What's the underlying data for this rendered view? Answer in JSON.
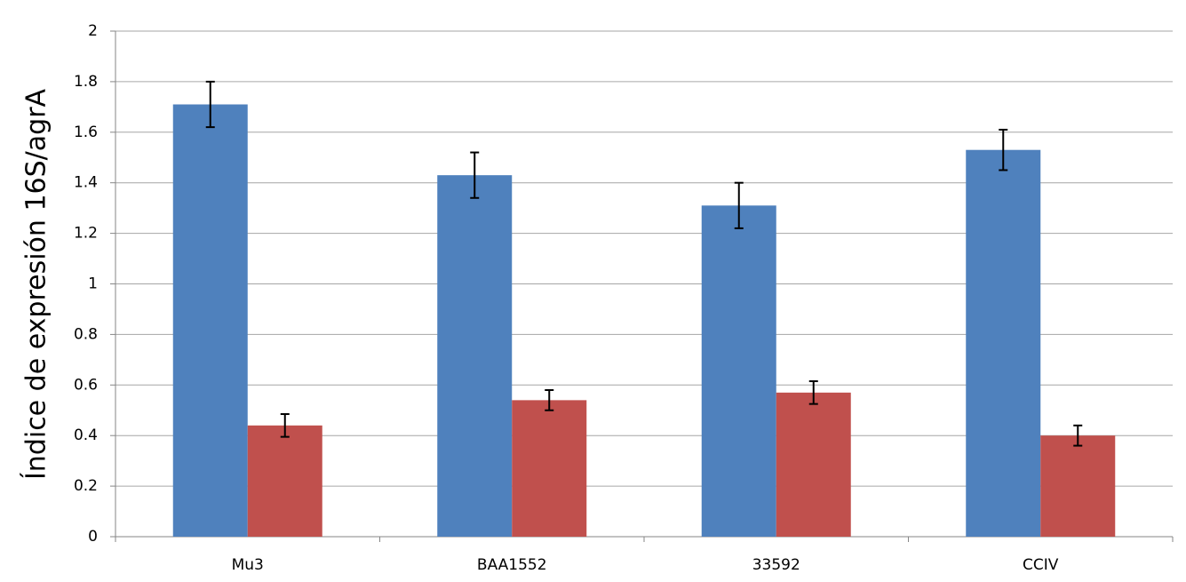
{
  "chart_data": {
    "type": "bar",
    "y_label": "Índice de expresión 16S/agrA",
    "categories": [
      "Mu3",
      "BAA1552",
      "33592",
      "CCIV"
    ],
    "series": [
      {
        "color": "#4f81bd",
        "values": [
          1.71,
          1.43,
          1.31,
          1.53
        ],
        "errors": [
          0.09,
          0.09,
          0.09,
          0.08
        ]
      },
      {
        "color": "#c0504d",
        "values": [
          0.44,
          0.54,
          0.57,
          0.4
        ],
        "errors": [
          0.045,
          0.04,
          0.045,
          0.04
        ]
      }
    ],
    "ylim": [
      0,
      2
    ],
    "yticks": [
      0,
      0.2,
      0.4,
      0.6,
      0.8,
      1,
      1.2,
      1.4,
      1.6,
      1.8,
      2
    ],
    "grid": true
  }
}
